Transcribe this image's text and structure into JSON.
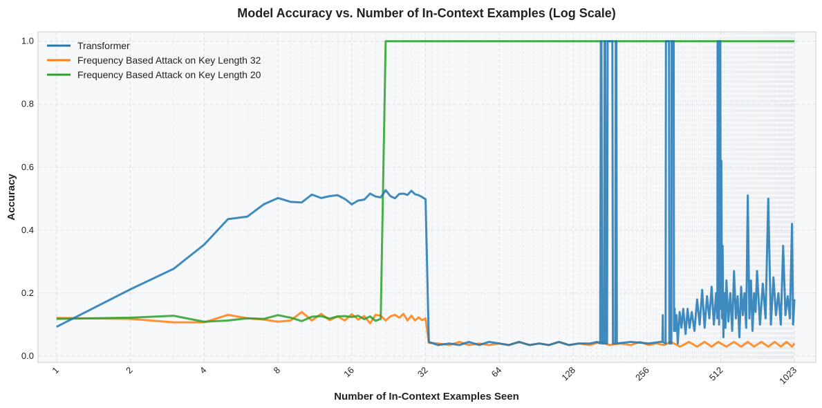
{
  "chart_data": {
    "type": "line",
    "title": "Model Accuracy vs. Number of In-Context Examples (Log Scale)",
    "xlabel": "Number of In-Context Examples Seen",
    "ylabel": "Accuracy",
    "x_scale": "log2",
    "xlim": [
      0.84,
      1250
    ],
    "ylim": [
      -0.02,
      1.03
    ],
    "x_ticks": [
      1,
      2,
      4,
      8,
      16,
      32,
      64,
      128,
      256,
      512,
      1023
    ],
    "x_tick_labels": [
      "1",
      "2",
      "4",
      "8",
      "16",
      "32",
      "64",
      "128",
      "256",
      "512",
      "1023"
    ],
    "y_ticks": [
      0.0,
      0.2,
      0.4,
      0.6,
      0.8,
      1.0
    ],
    "y_tick_labels": [
      "0.0",
      "0.2",
      "0.4",
      "0.6",
      "0.8",
      "1.0"
    ],
    "grid": true,
    "legend_position": "top-left",
    "series": [
      {
        "name": "Transformer",
        "color": "#1f77b4",
        "points": [
          [
            1,
            0.093
          ],
          [
            2,
            0.212
          ],
          [
            3,
            0.277
          ],
          [
            4,
            0.354
          ],
          [
            5,
            0.435
          ],
          [
            6,
            0.443
          ],
          [
            7,
            0.482
          ],
          [
            8,
            0.502
          ],
          [
            9,
            0.49
          ],
          [
            10,
            0.488
          ],
          [
            11,
            0.513
          ],
          [
            12,
            0.502
          ],
          [
            13,
            0.508
          ],
          [
            14,
            0.511
          ],
          [
            15,
            0.499
          ],
          [
            16,
            0.482
          ],
          [
            17,
            0.494
          ],
          [
            18,
            0.497
          ],
          [
            19,
            0.516
          ],
          [
            20,
            0.507
          ],
          [
            21,
            0.504
          ],
          [
            22,
            0.527
          ],
          [
            23,
            0.508
          ],
          [
            24,
            0.501
          ],
          [
            25,
            0.515
          ],
          [
            26,
            0.516
          ],
          [
            27,
            0.512
          ],
          [
            28,
            0.525
          ],
          [
            29,
            0.514
          ],
          [
            30,
            0.511
          ],
          [
            31,
            0.505
          ],
          [
            32,
            0.498
          ],
          [
            33,
            0.045
          ],
          [
            36,
            0.035
          ],
          [
            40,
            0.04
          ],
          [
            44,
            0.035
          ],
          [
            48,
            0.045
          ],
          [
            53,
            0.035
          ],
          [
            58,
            0.045
          ],
          [
            64,
            0.04
          ],
          [
            70,
            0.035
          ],
          [
            77,
            0.045
          ],
          [
            85,
            0.035
          ],
          [
            93,
            0.04
          ],
          [
            102,
            0.035
          ],
          [
            112,
            0.045
          ],
          [
            123,
            0.035
          ],
          [
            135,
            0.04
          ],
          [
            150,
            0.04
          ],
          [
            160,
            0.045
          ],
          [
            165,
            0.04
          ],
          [
            166,
            1.0
          ],
          [
            167,
            1.0
          ],
          [
            168,
            0.04
          ],
          [
            171,
            0.04
          ],
          [
            172,
            1.0
          ],
          [
            173,
            1.0
          ],
          [
            174,
            0.04
          ],
          [
            176,
            0.04
          ],
          [
            177,
            1.0
          ],
          [
            185,
            1.0
          ],
          [
            186,
            0.04
          ],
          [
            190,
            0.04
          ],
          [
            191,
            1.0
          ],
          [
            192,
            1.0
          ],
          [
            193,
            0.04
          ],
          [
            220,
            0.045
          ],
          [
            260,
            0.04
          ],
          [
            290,
            0.045
          ],
          [
            296,
            0.045
          ],
          [
            297,
            0.13
          ],
          [
            298,
            0.045
          ],
          [
            305,
            0.04
          ],
          [
            306,
            1.0
          ],
          [
            315,
            1.0
          ],
          [
            316,
            0.04
          ],
          [
            322,
            0.04
          ],
          [
            323,
            1.0
          ],
          [
            329,
            1.0
          ],
          [
            330,
            0.08
          ],
          [
            332,
            0.15
          ],
          [
            334,
            0.08
          ],
          [
            338,
            0.13
          ],
          [
            342,
            0.04
          ],
          [
            348,
            0.14
          ],
          [
            354,
            0.09
          ],
          [
            360,
            0.15
          ],
          [
            368,
            0.07
          ],
          [
            375,
            0.15
          ],
          [
            382,
            0.09
          ],
          [
            390,
            0.14
          ],
          [
            400,
            0.08
          ],
          [
            410,
            0.18
          ],
          [
            420,
            0.1
          ],
          [
            430,
            0.21
          ],
          [
            440,
            0.09
          ],
          [
            450,
            0.19
          ],
          [
            460,
            0.12
          ],
          [
            470,
            0.22
          ],
          [
            480,
            0.1
          ],
          [
            490,
            0.2
          ],
          [
            496,
            0.12
          ],
          [
            497,
            1.0
          ],
          [
            503,
            1.0
          ],
          [
            504,
            0.1
          ],
          [
            506,
            1.0
          ],
          [
            510,
            1.0
          ],
          [
            512,
            0.15
          ],
          [
            515,
            0.62
          ],
          [
            518,
            0.12
          ],
          [
            521,
            0.35
          ],
          [
            525,
            0.06
          ],
          [
            530,
            0.2
          ],
          [
            535,
            0.09
          ],
          [
            540,
            0.24
          ],
          [
            550,
            0.11
          ],
          [
            560,
            0.2
          ],
          [
            570,
            0.08
          ],
          [
            580,
            0.27
          ],
          [
            590,
            0.12
          ],
          [
            600,
            0.19
          ],
          [
            610,
            0.06
          ],
          [
            620,
            0.22
          ],
          [
            630,
            0.13
          ],
          [
            640,
            0.2
          ],
          [
            650,
            0.09
          ],
          [
            660,
            0.51
          ],
          [
            670,
            0.12
          ],
          [
            680,
            0.24
          ],
          [
            690,
            0.08
          ],
          [
            700,
            0.2
          ],
          [
            710,
            0.14
          ],
          [
            720,
            0.27
          ],
          [
            740,
            0.1
          ],
          [
            760,
            0.23
          ],
          [
            780,
            0.12
          ],
          [
            800,
            0.5
          ],
          [
            820,
            0.1
          ],
          [
            840,
            0.25
          ],
          [
            860,
            0.13
          ],
          [
            880,
            0.2
          ],
          [
            900,
            0.1
          ],
          [
            920,
            0.35
          ],
          [
            940,
            0.13
          ],
          [
            960,
            0.19
          ],
          [
            980,
            0.12
          ],
          [
            1000,
            0.42
          ],
          [
            1010,
            0.1
          ],
          [
            1023,
            0.18
          ]
        ]
      },
      {
        "name": "Frequency Based Attack on Key Length 32",
        "color": "#ff7f0e",
        "points": [
          [
            1,
            0.121
          ],
          [
            2,
            0.118
          ],
          [
            3,
            0.107
          ],
          [
            4,
            0.107
          ],
          [
            5,
            0.131
          ],
          [
            6,
            0.12
          ],
          [
            7,
            0.116
          ],
          [
            8,
            0.109
          ],
          [
            9,
            0.113
          ],
          [
            10,
            0.14
          ],
          [
            11,
            0.113
          ],
          [
            12,
            0.134
          ],
          [
            13,
            0.114
          ],
          [
            14,
            0.126
          ],
          [
            15,
            0.113
          ],
          [
            16,
            0.133
          ],
          [
            17,
            0.116
          ],
          [
            18,
            0.127
          ],
          [
            19,
            0.104
          ],
          [
            20,
            0.131
          ],
          [
            21,
            0.128
          ],
          [
            22,
            0.113
          ],
          [
            23,
            0.126
          ],
          [
            24,
            0.131
          ],
          [
            25,
            0.122
          ],
          [
            26,
            0.134
          ],
          [
            27,
            0.113
          ],
          [
            28,
            0.128
          ],
          [
            29,
            0.113
          ],
          [
            30,
            0.123
          ],
          [
            31,
            0.114
          ],
          [
            32,
            0.12
          ],
          [
            33,
            0.042
          ],
          [
            36,
            0.04
          ],
          [
            40,
            0.035
          ],
          [
            44,
            0.045
          ],
          [
            48,
            0.035
          ],
          [
            53,
            0.04
          ],
          [
            58,
            0.035
          ],
          [
            64,
            0.04
          ],
          [
            70,
            0.035
          ],
          [
            77,
            0.045
          ],
          [
            85,
            0.035
          ],
          [
            93,
            0.04
          ],
          [
            102,
            0.035
          ],
          [
            112,
            0.045
          ],
          [
            123,
            0.035
          ],
          [
            135,
            0.04
          ],
          [
            150,
            0.035
          ],
          [
            165,
            0.045
          ],
          [
            180,
            0.035
          ],
          [
            200,
            0.04
          ],
          [
            220,
            0.035
          ],
          [
            240,
            0.045
          ],
          [
            260,
            0.035
          ],
          [
            280,
            0.04
          ],
          [
            300,
            0.035
          ],
          [
            320,
            0.045
          ],
          [
            350,
            0.03
          ],
          [
            380,
            0.045
          ],
          [
            410,
            0.03
          ],
          [
            440,
            0.045
          ],
          [
            470,
            0.03
          ],
          [
            500,
            0.045
          ],
          [
            540,
            0.03
          ],
          [
            580,
            0.045
          ],
          [
            620,
            0.03
          ],
          [
            660,
            0.045
          ],
          [
            700,
            0.03
          ],
          [
            750,
            0.045
          ],
          [
            800,
            0.03
          ],
          [
            850,
            0.045
          ],
          [
            900,
            0.03
          ],
          [
            950,
            0.045
          ],
          [
            1000,
            0.03
          ],
          [
            1023,
            0.04
          ]
        ]
      },
      {
        "name": "Frequency Based Attack on Key Length 20",
        "color": "#2ca02c",
        "points": [
          [
            1,
            0.118
          ],
          [
            2,
            0.122
          ],
          [
            3,
            0.128
          ],
          [
            4,
            0.109
          ],
          [
            5,
            0.113
          ],
          [
            6,
            0.12
          ],
          [
            7,
            0.118
          ],
          [
            8,
            0.13
          ],
          [
            9,
            0.122
          ],
          [
            10,
            0.111
          ],
          [
            11,
            0.125
          ],
          [
            12,
            0.127
          ],
          [
            13,
            0.119
          ],
          [
            14,
            0.126
          ],
          [
            15,
            0.127
          ],
          [
            16,
            0.124
          ],
          [
            17,
            0.128
          ],
          [
            18,
            0.117
          ],
          [
            19,
            0.126
          ],
          [
            20,
            0.112
          ],
          [
            21,
            0.118
          ],
          [
            22,
            1.0
          ],
          [
            50,
            1.0
          ],
          [
            100,
            1.0
          ],
          [
            200,
            1.0
          ],
          [
            400,
            1.0
          ],
          [
            800,
            1.0
          ],
          [
            1023,
            1.0
          ]
        ]
      }
    ]
  }
}
